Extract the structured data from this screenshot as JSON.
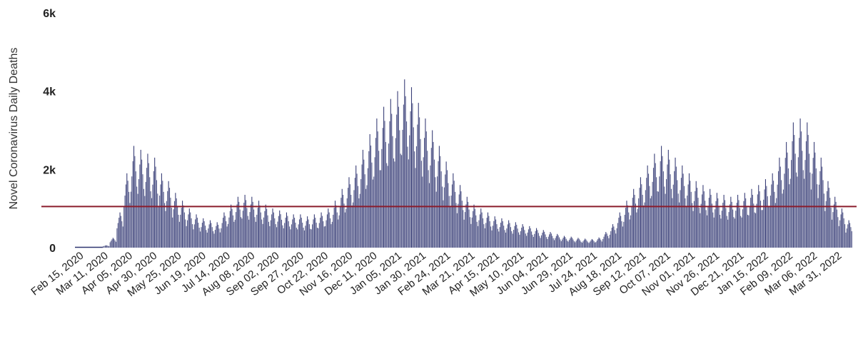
{
  "chart_data": {
    "type": "bar",
    "ylabel": "Novel Coronavirus Daily Deaths",
    "ylim": [
      0,
      6000
    ],
    "y_ticks": [
      {
        "value": 0,
        "label": "0"
      },
      {
        "value": 2000,
        "label": "2k"
      },
      {
        "value": 4000,
        "label": "4k"
      },
      {
        "value": 6000,
        "label": "6k"
      }
    ],
    "x_start": "2020-02-15",
    "x_end": "2022-04-06",
    "x_tick_labels": [
      "Feb 15, 2020",
      "Mar 11, 2020",
      "Apr 05, 2020",
      "Apr 30, 2020",
      "May 25, 2020",
      "Jun 19, 2020",
      "Jul 14, 2020",
      "Aug 08, 2020",
      "Sep 02, 2020",
      "Sep 27, 2020",
      "Oct 22, 2020",
      "Nov 16, 2020",
      "Dec 11, 2020",
      "Jan 05, 2021",
      "Jan 30, 2021",
      "Feb 24, 2021",
      "Mar 21, 2021",
      "Apr 15, 2021",
      "May 10, 2021",
      "Jun 04, 2021",
      "Jun 29, 2021",
      "Jul 24, 2021",
      "Aug 18, 2021",
      "Sep 12, 2021",
      "Oct 07, 2021",
      "Nov 01, 2021",
      "Nov 26, 2021",
      "Dec 21, 2021",
      "Jan 15, 2022",
      "Feb 09, 2022",
      "Mar 06, 2022",
      "Mar 31, 2022"
    ],
    "reference_line": {
      "value": 1050
    },
    "colors": {
      "bars": "#2e3470",
      "reference_line": "#8b1c2c",
      "text": "#222222"
    },
    "series": [
      {
        "type": "weekly-peak",
        "x": [
          "2020-02-15",
          "2020-02-22",
          "2020-02-29",
          "2020-03-07",
          "2020-03-14",
          "2020-03-21",
          "2020-03-28",
          "2020-04-04",
          "2020-04-11",
          "2020-04-18",
          "2020-04-25",
          "2020-05-02",
          "2020-05-09",
          "2020-05-16",
          "2020-05-23",
          "2020-05-30",
          "2020-06-06",
          "2020-06-13",
          "2020-06-20",
          "2020-06-27",
          "2020-07-04",
          "2020-07-11",
          "2020-07-18",
          "2020-07-25",
          "2020-08-01",
          "2020-08-08",
          "2020-08-15",
          "2020-08-22",
          "2020-08-29",
          "2020-09-05",
          "2020-09-12",
          "2020-09-19",
          "2020-09-26",
          "2020-10-03",
          "2020-10-10",
          "2020-10-17",
          "2020-10-24",
          "2020-10-31",
          "2020-11-07",
          "2020-11-14",
          "2020-11-21",
          "2020-11-28",
          "2020-12-05",
          "2020-12-12",
          "2020-12-19",
          "2020-12-26",
          "2021-01-02",
          "2021-01-09",
          "2021-01-16",
          "2021-01-23",
          "2021-01-30",
          "2021-02-06",
          "2021-02-13",
          "2021-02-20",
          "2021-02-27",
          "2021-03-06",
          "2021-03-13",
          "2021-03-20",
          "2021-03-27",
          "2021-04-03",
          "2021-04-10",
          "2021-04-17",
          "2021-04-24",
          "2021-05-01",
          "2021-05-08",
          "2021-05-15",
          "2021-05-22",
          "2021-05-29",
          "2021-06-05",
          "2021-06-12",
          "2021-06-19",
          "2021-06-26",
          "2021-07-03",
          "2021-07-10",
          "2021-07-17",
          "2021-07-24",
          "2021-07-31",
          "2021-08-07",
          "2021-08-14",
          "2021-08-21",
          "2021-08-28",
          "2021-09-04",
          "2021-09-11",
          "2021-09-18",
          "2021-09-25",
          "2021-10-02",
          "2021-10-09",
          "2021-10-16",
          "2021-10-23",
          "2021-10-30",
          "2021-11-06",
          "2021-11-13",
          "2021-11-20",
          "2021-11-27",
          "2021-12-04",
          "2021-12-11",
          "2021-12-18",
          "2021-12-25",
          "2022-01-01",
          "2022-01-08",
          "2022-01-15",
          "2022-01-22",
          "2022-01-29",
          "2022-02-05",
          "2022-02-12",
          "2022-02-19",
          "2022-02-26",
          "2022-03-05",
          "2022-03-12",
          "2022-03-19",
          "2022-03-26",
          "2022-04-02"
        ],
        "values": [
          0,
          0,
          0,
          10,
          60,
          250,
          900,
          1900,
          2600,
          2500,
          2400,
          2300,
          1900,
          1700,
          1400,
          1200,
          1000,
          850,
          750,
          700,
          650,
          900,
          1100,
          1300,
          1350,
          1300,
          1200,
          1100,
          1000,
          950,
          900,
          850,
          850,
          800,
          850,
          900,
          1000,
          1200,
          1500,
          1800,
          2100,
          2500,
          2900,
          3300,
          3600,
          3800,
          4000,
          4300,
          4100,
          3700,
          3300,
          3000,
          2600,
          2200,
          1900,
          1600,
          1300,
          1100,
          1000,
          900,
          800,
          750,
          700,
          650,
          600,
          550,
          500,
          450,
          400,
          350,
          300,
          280,
          250,
          230,
          220,
          260,
          400,
          600,
          900,
          1200,
          1500,
          1800,
          2100,
          2400,
          2600,
          2500,
          2300,
          2100,
          1900,
          1700,
          1600,
          1500,
          1400,
          1350,
          1300,
          1350,
          1400,
          1500,
          1600,
          1750,
          1900,
          2300,
          2700,
          3200,
          3300,
          3200,
          2700,
          2300,
          1700,
          1300,
          1000,
          700
        ]
      }
    ]
  }
}
